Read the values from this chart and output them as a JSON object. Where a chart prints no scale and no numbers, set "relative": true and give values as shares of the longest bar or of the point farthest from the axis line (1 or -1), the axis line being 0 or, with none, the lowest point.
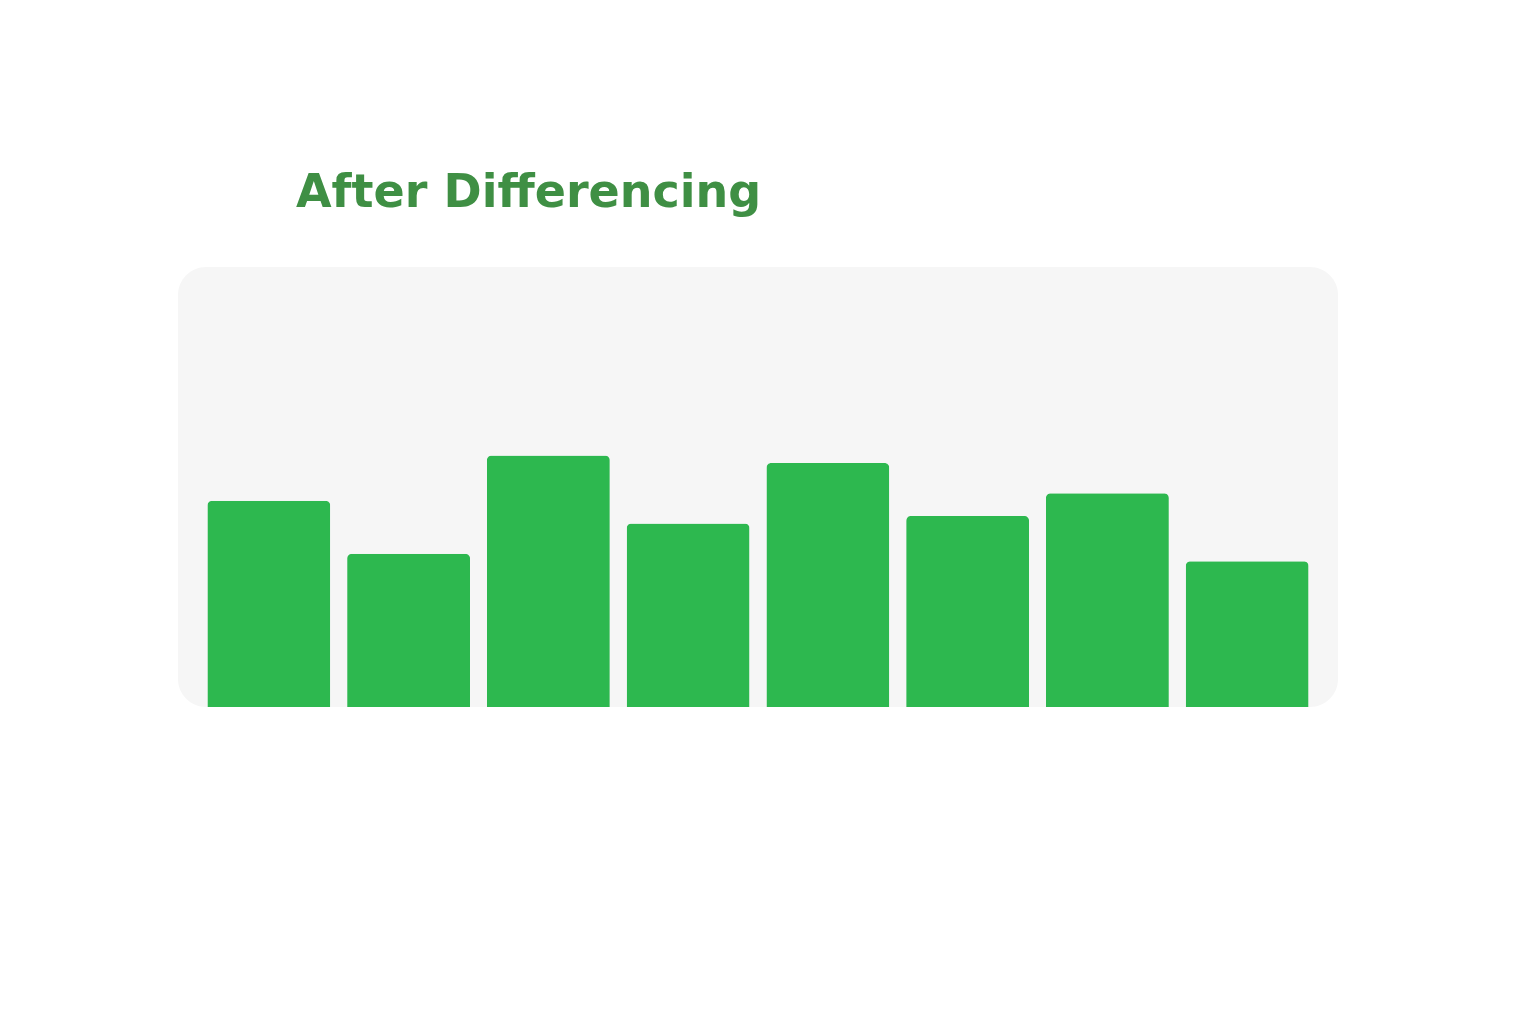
{
  "chart_data": {
    "type": "bar",
    "title": "After Differencing",
    "relative": true,
    "categories": [
      null,
      null,
      null,
      null,
      null,
      null,
      null,
      null
    ],
    "values": [
      0.82,
      0.61,
      1.0,
      0.73,
      0.97,
      0.76,
      0.85,
      0.58
    ],
    "color": "#2db84f",
    "grid": false
  }
}
